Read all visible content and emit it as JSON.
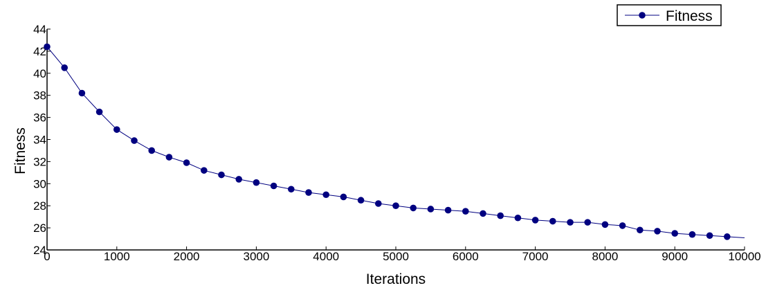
{
  "chart_data": {
    "type": "line",
    "title": "",
    "xlabel": "Iterations",
    "ylabel": "Fitness",
    "xlim": [
      0,
      10000
    ],
    "ylim": [
      24,
      44
    ],
    "xticks": [
      0,
      1000,
      2000,
      3000,
      4000,
      5000,
      6000,
      7000,
      8000,
      9000,
      10000
    ],
    "yticks": [
      24,
      26,
      28,
      30,
      32,
      34,
      36,
      38,
      40,
      42,
      44
    ],
    "grid": false,
    "legend": {
      "position": "top-right"
    },
    "series": [
      {
        "name": "Fitness",
        "color": "#000080",
        "marker": "circle",
        "x": [
          0,
          250,
          500,
          750,
          1000,
          1250,
          1500,
          1750,
          2000,
          2250,
          2500,
          2750,
          3000,
          3250,
          3500,
          3750,
          4000,
          4250,
          4500,
          4750,
          5000,
          5250,
          5500,
          5750,
          6000,
          6250,
          6500,
          6750,
          7000,
          7250,
          7500,
          7750,
          8000,
          8250,
          8500,
          8750,
          9000,
          9250,
          9500,
          9750
        ],
        "y": [
          42.4,
          40.5,
          38.2,
          36.5,
          34.9,
          33.9,
          33.0,
          32.4,
          31.9,
          31.2,
          30.8,
          30.4,
          30.1,
          29.8,
          29.5,
          29.2,
          29.0,
          28.8,
          28.5,
          28.2,
          28.0,
          27.8,
          27.7,
          27.6,
          27.5,
          27.3,
          27.1,
          26.9,
          26.7,
          26.6,
          26.5,
          26.5,
          26.3,
          26.2,
          25.8,
          25.7,
          25.5,
          25.4,
          25.3,
          25.2
        ],
        "line_end": [
          10000,
          25.1
        ]
      }
    ]
  }
}
